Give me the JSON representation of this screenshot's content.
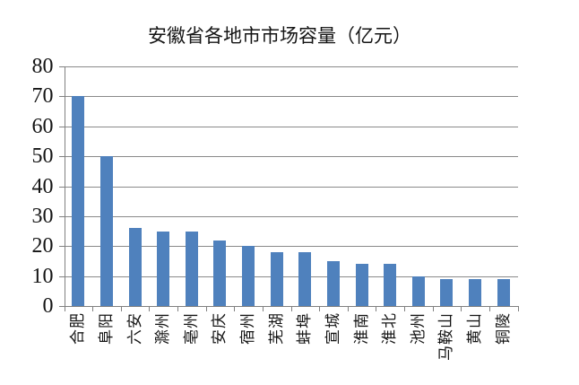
{
  "chart_data": {
    "type": "bar",
    "title": "安徽省各地市市场容量（亿元）",
    "categories": [
      "合肥",
      "阜阳",
      "六安",
      "滁州",
      "亳州",
      "安庆",
      "宿州",
      "芜湖",
      "蚌埠",
      "宣城",
      "淮南",
      "淮北",
      "池州",
      "马鞍山",
      "黄山",
      "铜陵"
    ],
    "values": [
      70,
      50,
      26,
      25,
      25,
      22,
      20,
      18,
      18,
      15,
      14,
      14,
      10,
      9,
      9,
      9
    ],
    "xlabel": "",
    "ylabel": "",
    "ylim": [
      0,
      80
    ],
    "yticks": [
      0,
      10,
      20,
      30,
      40,
      50,
      60,
      70,
      80
    ],
    "ytick_interval": 10,
    "grid": true,
    "legend": "none",
    "bar_color": "#4F81BD",
    "gridline_color": "#8A8A8A",
    "axis_color": "#808080",
    "text_color": "#141414",
    "background_color": "#FFFFFF"
  }
}
